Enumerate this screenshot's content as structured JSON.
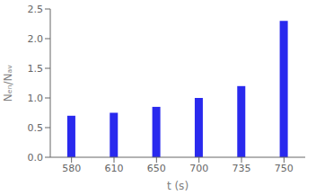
{
  "chart_data": {
    "type": "bar",
    "categories": [
      "580",
      "610",
      "650",
      "700",
      "735",
      "750"
    ],
    "values": [
      0.7,
      0.75,
      0.85,
      1.0,
      1.2,
      2.3
    ],
    "color": "#2929ee",
    "xlabel": "t (s)",
    "ylabel": "Nₑₙ/Nₐᵥ",
    "ylim": [
      0,
      2.5
    ],
    "yticks": [
      {
        "value": 0,
        "label": "0.0"
      },
      0.5,
      {
        "value": 1.0,
        "label": "1.0"
      },
      1.5,
      {
        "value": 2.0,
        "label": "2.0"
      },
      2.5
    ],
    "grid": false
  }
}
